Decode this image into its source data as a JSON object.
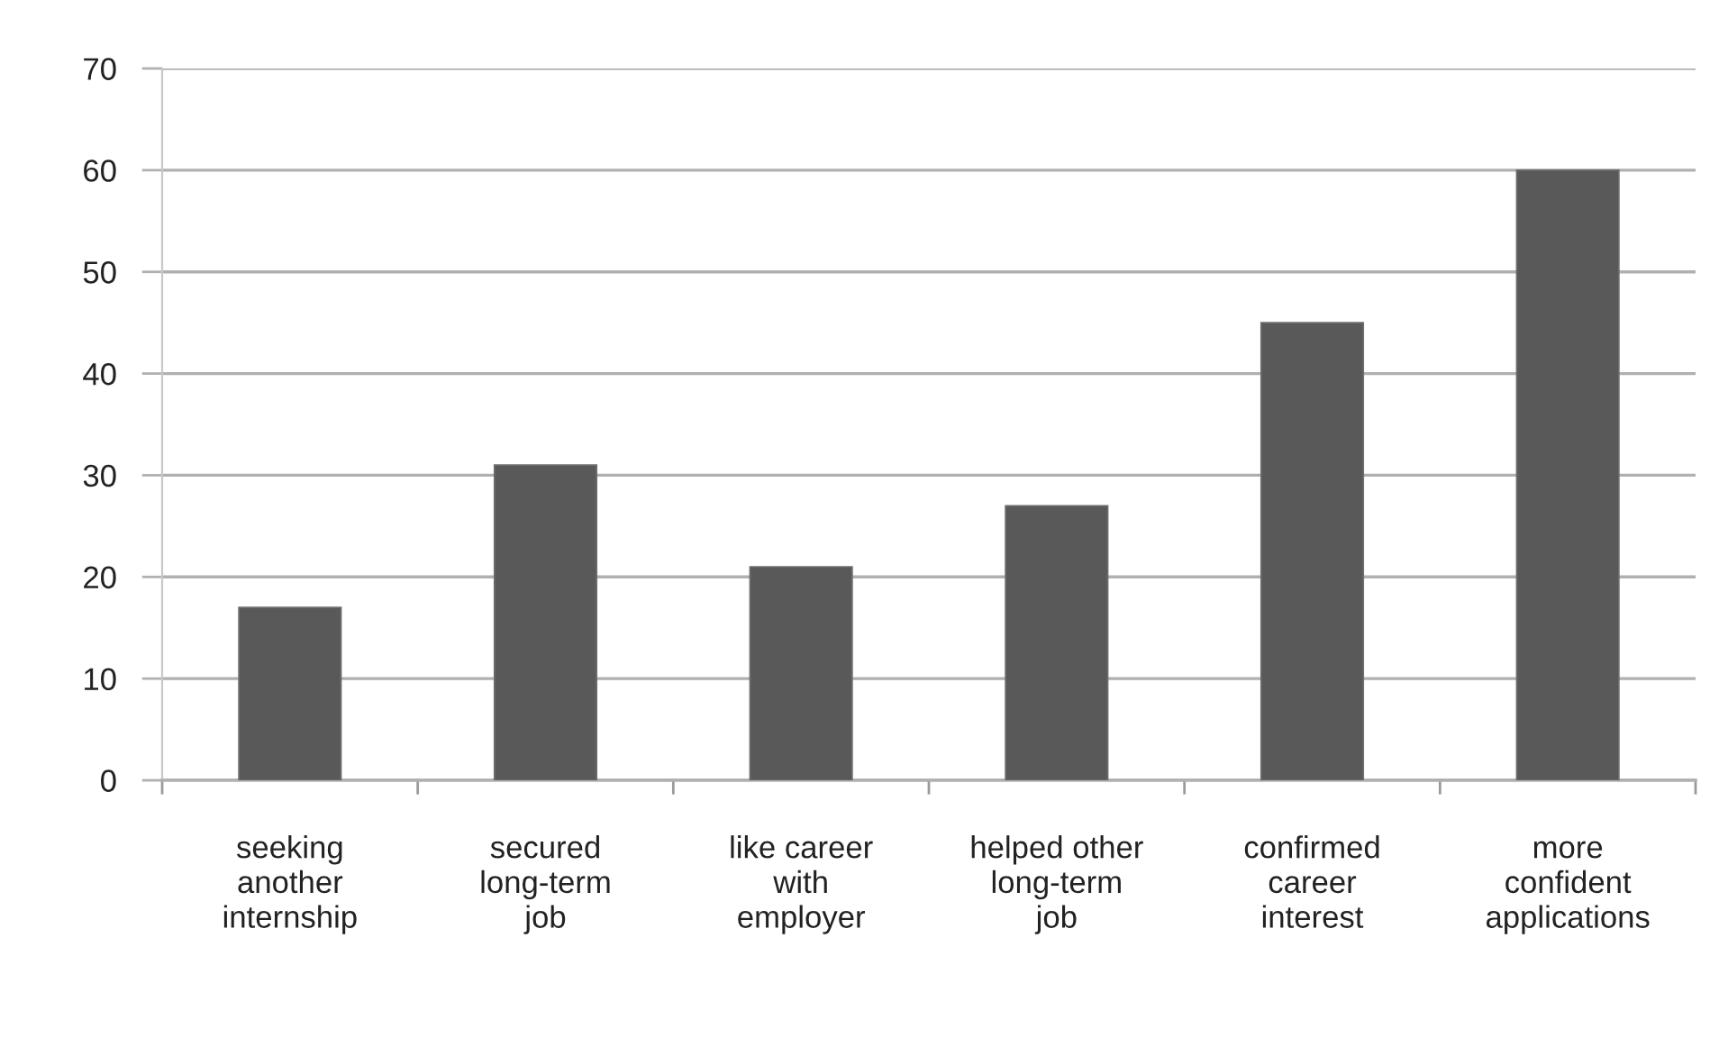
{
  "chart_data": {
    "type": "bar",
    "categories": [
      "seeking\nanother\ninternship",
      "secured\nlong-term\njob",
      "like career\nwith\nemployer",
      "helped other\nlong-term\njob",
      "confirmed\ncareer\ninterest",
      "more\nconfident\napplications"
    ],
    "values": [
      17,
      31,
      21,
      27,
      45,
      60
    ],
    "color": "#595959",
    "ylim": [
      0,
      70
    ],
    "yticks": [
      0,
      10,
      20,
      30,
      40,
      50,
      60,
      70
    ],
    "grid": "y",
    "legend": false
  }
}
